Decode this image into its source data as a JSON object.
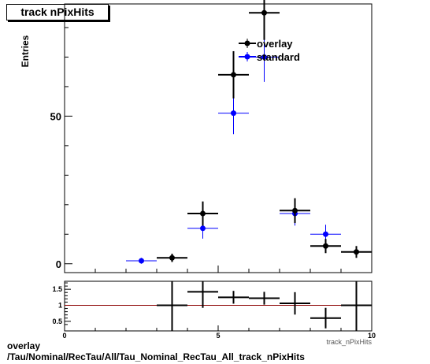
{
  "title": "track nPixHits",
  "caption_line1": "overlay",
  "caption_line2": "/Tau/Nominal/RecTau/All/Tau_Nominal_RecTau_All_track_nPixHits",
  "colors": {
    "overlay": "#000000",
    "standard": "#0000ff",
    "ratio_line": "#8b0000"
  },
  "chart_data": [
    {
      "type": "scatter",
      "ylabel": "Entries",
      "xlabel": "track_nPixHits",
      "xlim": [
        0,
        10
      ],
      "ylim": [
        -3,
        88
      ],
      "x_tick_labels": [
        "0",
        "5",
        "10"
      ],
      "y_tick_labels": [
        "0",
        "50"
      ],
      "legend_position": "top-right",
      "series": [
        {
          "name": "overlay",
          "color": "#000000",
          "x": [
            3.5,
            4.5,
            5.5,
            6.5,
            7.5,
            8.5,
            9.5
          ],
          "y": [
            2,
            17,
            64,
            85,
            18,
            6,
            4
          ],
          "yerr": [
            1.4,
            4.1,
            8,
            9.2,
            4.2,
            2.4,
            2
          ]
        },
        {
          "name": "standard",
          "color": "#0000ff",
          "x": [
            2.5,
            4.5,
            5.5,
            6.5,
            7.5,
            8.5
          ],
          "y": [
            1,
            12,
            51,
            70,
            17,
            10
          ],
          "yerr": [
            1,
            3.5,
            7.1,
            8.4,
            4.1,
            3.2
          ]
        }
      ]
    },
    {
      "type": "scatter",
      "xlim": [
        0,
        10
      ],
      "ylim": [
        0.2,
        1.75
      ],
      "x_tick_labels": [
        "0",
        "5",
        "10"
      ],
      "y_tick_labels": [
        "0.5",
        "1",
        "1.5"
      ],
      "reference_line": 1,
      "series": [
        {
          "color": "#000000",
          "x": [
            3.5,
            4.5,
            5.5,
            6.5,
            7.5,
            8.5,
            9.5
          ],
          "y": [
            1.0,
            1.42,
            1.25,
            1.22,
            1.06,
            0.6,
            1.0
          ],
          "yerr": [
            1.0,
            0.5,
            0.2,
            0.2,
            0.35,
            0.32,
            1.0
          ]
        }
      ]
    }
  ]
}
